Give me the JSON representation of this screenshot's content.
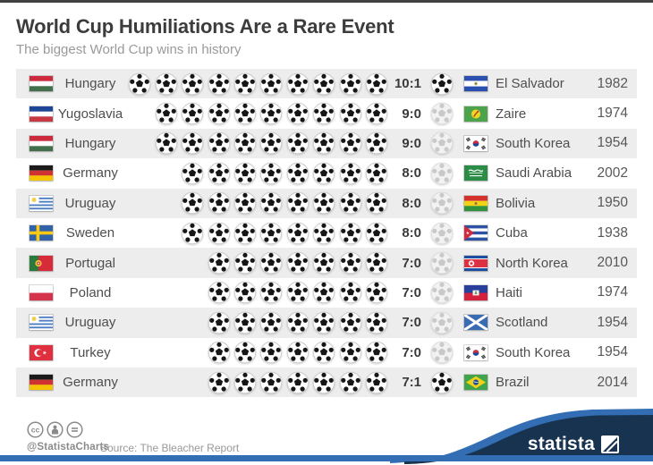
{
  "header": {
    "title": "World Cup Humiliations Are a Rare Event",
    "subtitle": "The biggest World Cup wins in history"
  },
  "chart_data": {
    "type": "bar",
    "subtype": "pictogram",
    "icon_unit": "1 soccer ball = 1 goal",
    "title": "World Cup Humiliations Are a Rare Event",
    "subtitle": "The biggest World Cup wins in history",
    "rows": [
      {
        "winner": "Hungary",
        "winner_flag": "hungary",
        "winner_goals": 10,
        "score": "10:1",
        "loser_goals": 1,
        "loser": "El Salvador",
        "loser_flag": "el-salvador",
        "year": "1982"
      },
      {
        "winner": "Yugoslavia",
        "winner_flag": "yugoslavia",
        "winner_goals": 9,
        "score": "9:0",
        "loser_goals": 0,
        "loser": "Zaire",
        "loser_flag": "zaire",
        "year": "1974"
      },
      {
        "winner": "Hungary",
        "winner_flag": "hungary",
        "winner_goals": 9,
        "score": "9:0",
        "loser_goals": 0,
        "loser": "South Korea",
        "loser_flag": "south-korea",
        "year": "1954"
      },
      {
        "winner": "Germany",
        "winner_flag": "germany",
        "winner_goals": 8,
        "score": "8:0",
        "loser_goals": 0,
        "loser": "Saudi Arabia",
        "loser_flag": "saudi-arabia",
        "year": "2002"
      },
      {
        "winner": "Uruguay",
        "winner_flag": "uruguay",
        "winner_goals": 8,
        "score": "8:0",
        "loser_goals": 0,
        "loser": "Bolivia",
        "loser_flag": "bolivia",
        "year": "1950"
      },
      {
        "winner": "Sweden",
        "winner_flag": "sweden",
        "winner_goals": 8,
        "score": "8:0",
        "loser_goals": 0,
        "loser": "Cuba",
        "loser_flag": "cuba",
        "year": "1938"
      },
      {
        "winner": "Portugal",
        "winner_flag": "portugal",
        "winner_goals": 7,
        "score": "7:0",
        "loser_goals": 0,
        "loser": "North Korea",
        "loser_flag": "north-korea",
        "year": "2010"
      },
      {
        "winner": "Poland",
        "winner_flag": "poland",
        "winner_goals": 7,
        "score": "7:0",
        "loser_goals": 0,
        "loser": "Haiti",
        "loser_flag": "haiti",
        "year": "1974"
      },
      {
        "winner": "Uruguay",
        "winner_flag": "uruguay",
        "winner_goals": 7,
        "score": "7:0",
        "loser_goals": 0,
        "loser": "Scotland",
        "loser_flag": "scotland",
        "year": "1954"
      },
      {
        "winner": "Turkey",
        "winner_flag": "turkey",
        "winner_goals": 7,
        "score": "7:0",
        "loser_goals": 0,
        "loser": "South Korea",
        "loser_flag": "south-korea",
        "year": "1954"
      },
      {
        "winner": "Germany",
        "winner_flag": "germany",
        "winner_goals": 7,
        "score": "7:1",
        "loser_goals": 1,
        "loser": "Brazil",
        "loser_flag": "brazil",
        "year": "2014"
      }
    ]
  },
  "footer": {
    "license_icons": [
      "cc-icon",
      "attribution-icon",
      "no-derivatives-icon"
    ],
    "handle": "@StatistaCharts",
    "source": "Source: The Bleacher Report",
    "brand": "statista"
  },
  "colors": {
    "accent_blue": "#336eb4",
    "brand_navy": "#17334f",
    "row_alt": "#ededed",
    "ball_black": "#161616",
    "title_text": "#3c3c3c",
    "subtitle_text": "#9a9a9a"
  }
}
